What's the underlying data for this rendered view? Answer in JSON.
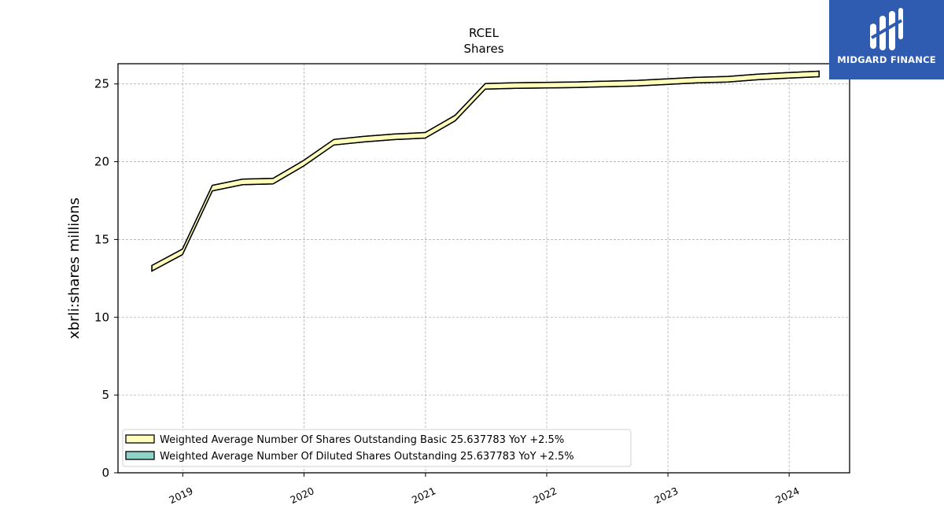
{
  "brand": {
    "name": "MIDGARD FINANCE",
    "color": "#2f5bb0"
  },
  "chart_data": {
    "type": "line",
    "title": "RCEL",
    "subtitle": "Shares",
    "ylabel": "xbrli:shares millions",
    "xlabel": "",
    "ylim": [
      0,
      26.3
    ],
    "xlim": [
      "2018-06-20",
      "2024-07-01"
    ],
    "yticks": [
      0,
      5,
      10,
      15,
      20,
      25
    ],
    "xticks": [
      {
        "date": "2019-01-01",
        "label": "2019"
      },
      {
        "date": "2020-01-01",
        "label": "2020"
      },
      {
        "date": "2021-01-01",
        "label": "2021"
      },
      {
        "date": "2022-01-01",
        "label": "2022"
      },
      {
        "date": "2023-01-01",
        "label": "2023"
      },
      {
        "date": "2024-01-01",
        "label": "2024"
      }
    ],
    "grid": true,
    "legend_position": "lower-left",
    "x": [
      "2018-09-30",
      "2018-12-31",
      "2019-03-31",
      "2019-06-30",
      "2019-09-30",
      "2019-12-31",
      "2020-03-31",
      "2020-06-30",
      "2020-09-30",
      "2020-12-31",
      "2021-03-31",
      "2021-06-30",
      "2021-09-30",
      "2021-12-31",
      "2022-03-31",
      "2022-06-30",
      "2022-09-30",
      "2022-12-31",
      "2023-03-31",
      "2023-06-30",
      "2023-09-30",
      "2023-12-31",
      "2024-03-31"
    ],
    "series": [
      {
        "name": "Weighted Average Number Of Shares Outstanding Basic",
        "legend_label": "Weighted Average Number Of Shares Outstanding Basic  25.637783 YoY +2.5%",
        "color": "#ffffbb",
        "values": [
          13.15,
          14.2,
          18.3,
          18.7,
          18.75,
          19.9,
          21.25,
          21.45,
          21.6,
          21.7,
          22.8,
          24.85,
          24.9,
          24.92,
          24.95,
          25.0,
          25.05,
          25.15,
          25.25,
          25.3,
          25.45,
          25.55,
          25.64
        ]
      },
      {
        "name": "Weighted Average Number Of Diluted Shares Outstanding",
        "legend_label": "Weighted Average Number Of Diluted Shares Outstanding  25.637783 YoY +2.5%",
        "color": "#8ed3c7",
        "values": [
          13.15,
          14.2,
          18.3,
          18.7,
          18.75,
          19.9,
          21.25,
          21.45,
          21.6,
          21.7,
          22.8,
          24.85,
          24.9,
          24.92,
          24.95,
          25.0,
          25.05,
          25.15,
          25.25,
          25.3,
          25.45,
          25.55,
          25.64
        ]
      }
    ]
  }
}
